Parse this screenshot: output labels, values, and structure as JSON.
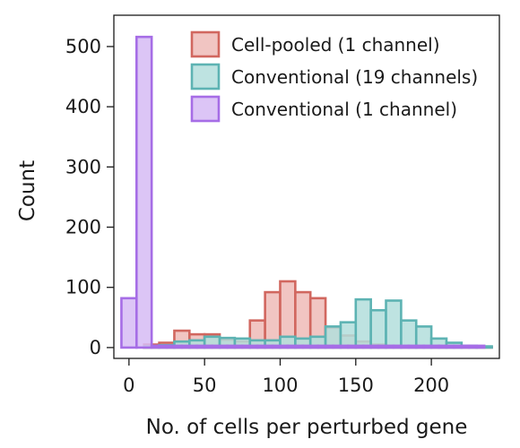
{
  "chart_data": {
    "type": "histogram",
    "title": "",
    "xlabel": "No. of cells per perturbed gene",
    "ylabel": "Count",
    "xlim": [
      -10,
      245
    ],
    "ylim": [
      -18,
      552
    ],
    "xticks": [
      0,
      50,
      100,
      150,
      200
    ],
    "yticks": [
      0,
      100,
      200,
      300,
      400,
      500
    ],
    "bin_width": 10,
    "grid": false,
    "legend_position": "top-right",
    "series": [
      {
        "name": "Cell-pooled (1 channel)",
        "color": "#d1675f",
        "fill": "#efbbb7",
        "bins": [
          [
            10,
            5
          ],
          [
            20,
            8
          ],
          [
            30,
            28
          ],
          [
            40,
            22
          ],
          [
            50,
            22
          ],
          [
            60,
            13
          ],
          [
            70,
            10
          ],
          [
            80,
            45
          ],
          [
            90,
            92
          ],
          [
            100,
            110
          ],
          [
            110,
            92
          ],
          [
            120,
            82
          ],
          [
            130,
            33
          ],
          [
            140,
            20
          ],
          [
            150,
            10
          ],
          [
            160,
            5
          ],
          [
            170,
            3
          ],
          [
            180,
            2
          ],
          [
            190,
            1
          ],
          [
            200,
            1
          ],
          [
            210,
            1
          ],
          [
            220,
            1
          ],
          [
            230,
            1
          ]
        ]
      },
      {
        "name": "Conventional (19 channels)",
        "color": "#5db3b3",
        "fill": "#b3dedc",
        "bins": [
          [
            10,
            2
          ],
          [
            20,
            4
          ],
          [
            30,
            10
          ],
          [
            40,
            12
          ],
          [
            50,
            18
          ],
          [
            60,
            16
          ],
          [
            70,
            15
          ],
          [
            80,
            12
          ],
          [
            90,
            12
          ],
          [
            100,
            18
          ],
          [
            110,
            15
          ],
          [
            120,
            18
          ],
          [
            130,
            35
          ],
          [
            140,
            42
          ],
          [
            150,
            80
          ],
          [
            160,
            62
          ],
          [
            170,
            78
          ],
          [
            180,
            45
          ],
          [
            190,
            35
          ],
          [
            200,
            15
          ],
          [
            210,
            8
          ],
          [
            220,
            3
          ],
          [
            230,
            2
          ]
        ]
      },
      {
        "name": "Conventional (1 channel)",
        "color": "#a66de6",
        "fill": "#d6bbf5",
        "bins": [
          [
            -5,
            82
          ],
          [
            5,
            516
          ],
          [
            15,
            3
          ],
          [
            25,
            3
          ],
          [
            35,
            3
          ],
          [
            45,
            3
          ],
          [
            55,
            3
          ],
          [
            65,
            3
          ],
          [
            75,
            3
          ],
          [
            85,
            3
          ],
          [
            95,
            3
          ],
          [
            105,
            3
          ],
          [
            115,
            3
          ],
          [
            125,
            3
          ],
          [
            135,
            3
          ],
          [
            145,
            3
          ],
          [
            155,
            3
          ],
          [
            165,
            3
          ],
          [
            175,
            3
          ],
          [
            185,
            3
          ],
          [
            195,
            3
          ],
          [
            205,
            3
          ],
          [
            215,
            3
          ],
          [
            225,
            3
          ]
        ]
      }
    ]
  }
}
